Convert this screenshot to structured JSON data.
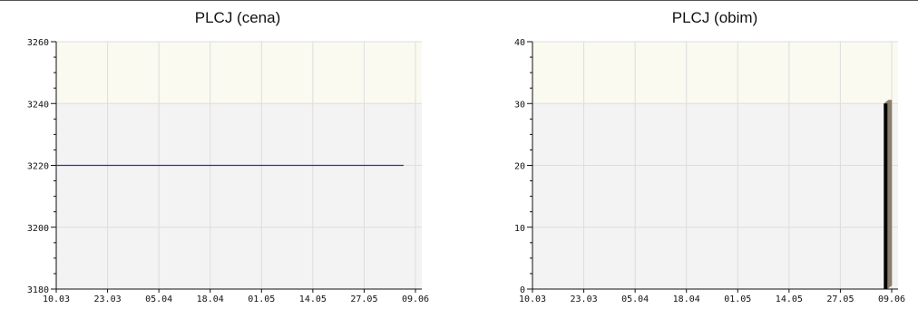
{
  "chart_data": [
    {
      "type": "line",
      "title": "PLCJ (cena)",
      "xlabel": "",
      "ylabel": "",
      "x_tick_labels": [
        "10.03",
        "23.03",
        "05.04",
        "18.04",
        "01.05",
        "14.05",
        "27.05",
        "09.06"
      ],
      "y_tick_labels": [
        "3260",
        "3240",
        "3220",
        "3200",
        "3180"
      ],
      "ylim": [
        3180,
        3260
      ],
      "grid": true,
      "series": [
        {
          "x": [
            "10.03",
            "23.03",
            "05.04",
            "18.04",
            "01.05",
            "14.05",
            "27.05",
            "06.06"
          ],
          "values": [
            3220,
            3220,
            3220,
            3220,
            3220,
            3220,
            3220,
            3220
          ]
        }
      ],
      "colors": {
        "line": "#333399",
        "band_upper": "#fafaf0",
        "band_lower": "#f3f3f3",
        "grid": "#dddddd"
      }
    },
    {
      "type": "bar",
      "title": "PLCJ (obim)",
      "xlabel": "",
      "ylabel": "",
      "x_tick_labels": [
        "10.03",
        "23.03",
        "05.04",
        "18.04",
        "01.05",
        "14.05",
        "27.05",
        "09.06"
      ],
      "y_tick_labels": [
        "40",
        "30",
        "20",
        "10",
        "0"
      ],
      "ylim": [
        0,
        40
      ],
      "grid": true,
      "series": [
        {
          "x": [
            "07.06"
          ],
          "values": [
            30
          ]
        }
      ],
      "colors": {
        "bar": "#000000",
        "bar_shadow": "#8b7d6b",
        "band_upper": "#fafaf0",
        "band_lower": "#f3f3f3",
        "grid": "#dddddd"
      }
    }
  ]
}
